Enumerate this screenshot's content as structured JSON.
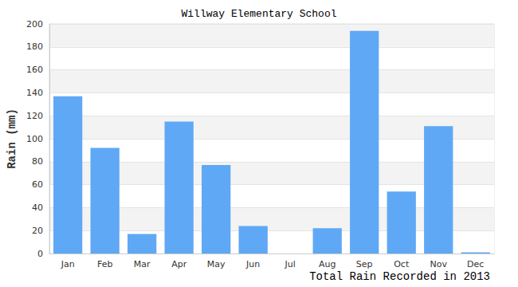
{
  "chart_data": {
    "type": "bar",
    "title": "Willway Elementary School",
    "xlabel": "Total Rain Recorded in 2013",
    "ylabel": "Rain (mm)",
    "categories": [
      "Jan",
      "Feb",
      "Mar",
      "Apr",
      "May",
      "Jun",
      "Jul",
      "Aug",
      "Sep",
      "Oct",
      "Nov",
      "Dec"
    ],
    "values": [
      137,
      92,
      17,
      115,
      77,
      24,
      0,
      22,
      194,
      54,
      111,
      1
    ],
    "color": "#5fa8f5",
    "ylim": [
      0,
      200
    ],
    "yticks": [
      0,
      20,
      40,
      60,
      80,
      100,
      120,
      140,
      160,
      180,
      200
    ],
    "grid": true
  }
}
